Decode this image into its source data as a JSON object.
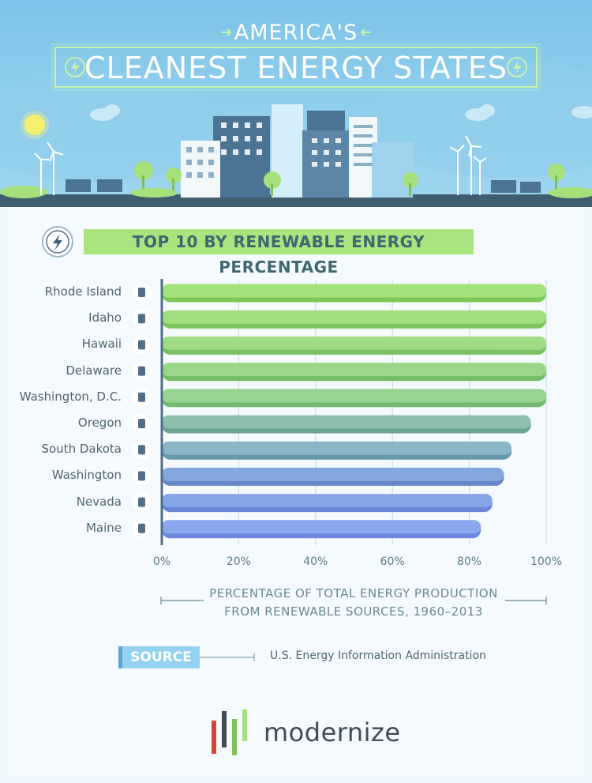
{
  "header": {
    "title_line1": "AMERICA'S",
    "title_line2": "CLEANEST ENERGY STATES"
  },
  "section": {
    "title": "TOP 10 BY RENEWABLE ENERGY PERCENTAGE",
    "icon": "lightning-icon"
  },
  "chart_data": {
    "type": "bar",
    "orientation": "horizontal",
    "title": "TOP 10 BY RENEWABLE ENERGY PERCENTAGE",
    "xlabel": "PERCENTAGE OF TOTAL ENERGY PRODUCTION FROM RENEWABLE SOURCES, 1960–2013",
    "xlabel_lines": [
      "PERCENTAGE OF TOTAL ENERGY PRODUCTION",
      "FROM RENEWABLE SOURCES, 1960–2013"
    ],
    "categories": [
      "Rhode Island",
      "Idaho",
      "Hawaii",
      "Delaware",
      "Washington, D.C.",
      "Oregon",
      "South Dakota",
      "Washington",
      "Nevada",
      "Maine"
    ],
    "values": [
      100,
      100,
      100,
      100,
      100,
      96,
      91,
      89,
      86,
      83
    ],
    "xlim": [
      0,
      100
    ],
    "ticks": [
      "0%",
      "20%",
      "40%",
      "60%",
      "80%",
      "100%"
    ],
    "tick_values": [
      0,
      20,
      40,
      60,
      80,
      100
    ],
    "grid": true,
    "bar_colors": [
      "#a4e27c",
      "#a0df7e",
      "#9edb82",
      "#9ad788",
      "#97d48f",
      "#8cbfae",
      "#8ab6c7",
      "#84a8dc",
      "#86a4e8",
      "#8aa6ef"
    ],
    "bar_shadow_colors": [
      "#7fc95a",
      "#7cc55d",
      "#79c162",
      "#76bd68",
      "#73b96f",
      "#6aa394",
      "#6898ae",
      "#6789c8",
      "#6885d6",
      "#6b87de"
    ]
  },
  "source": {
    "label": "SOURCE",
    "text": "U.S. Energy Information Administration"
  },
  "logo": {
    "text": "modernize"
  },
  "colors": {
    "sky": "#7fc5e6",
    "accent_green": "#a8e57e",
    "axis": "#4f6e8a",
    "text": "#4f666d"
  }
}
